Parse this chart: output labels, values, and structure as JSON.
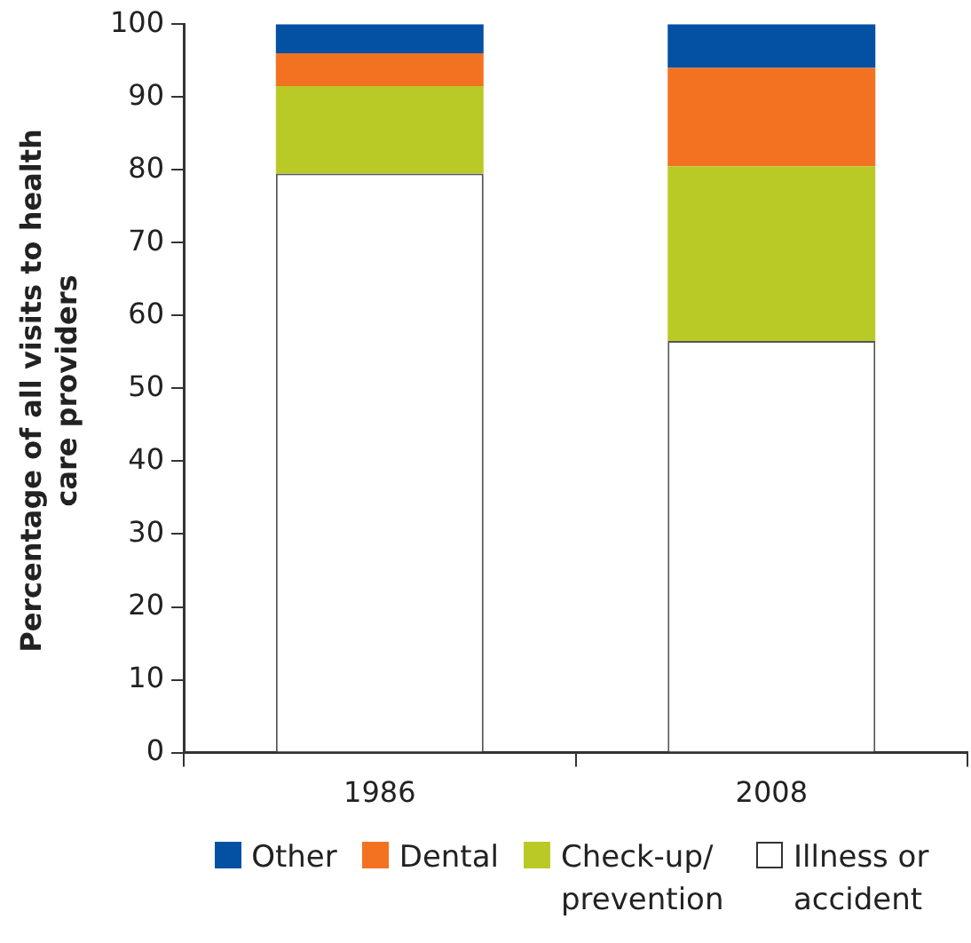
{
  "chart_data": {
    "type": "bar",
    "stacked": true,
    "ylabel": "Percentage of all visits to health care providers",
    "categories": [
      "1986",
      "2008"
    ],
    "ylim": [
      0,
      100
    ],
    "yticks": [
      0,
      10,
      20,
      30,
      40,
      50,
      60,
      70,
      80,
      90,
      100
    ],
    "legend": "bottom",
    "series": [
      {
        "name": "Illness or accident",
        "color": "#ffffff",
        "values": [
          79.5,
          56.5
        ]
      },
      {
        "name": "Check-up/ prevention",
        "color": "#b9ca27",
        "values": [
          12,
          24
        ]
      },
      {
        "name": "Dental",
        "color": "#f37221",
        "values": [
          4.5,
          13.5
        ]
      },
      {
        "name": "Other",
        "color": "#0450a3",
        "values": [
          4,
          6
        ]
      }
    ]
  }
}
